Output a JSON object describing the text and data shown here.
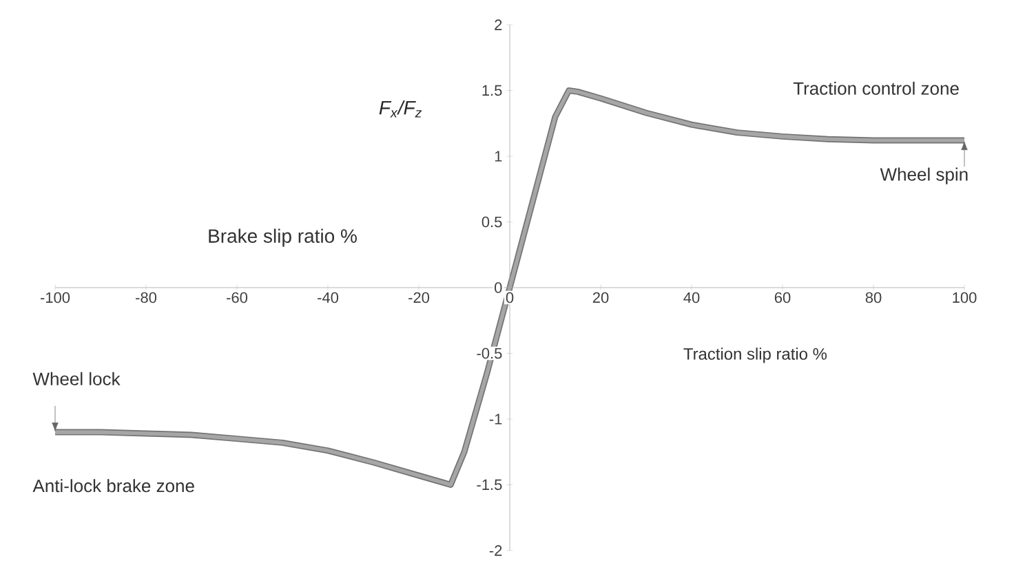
{
  "chart_data": {
    "type": "line",
    "ylabel": "F$_{x}$/F$_{z}$",
    "xlabel": "Traction slip ratio %",
    "xlim": [
      -100,
      100
    ],
    "ylim": [
      -2,
      2
    ],
    "xticks": [
      -100,
      -80,
      -60,
      -40,
      -20,
      0,
      20,
      40,
      60,
      80,
      100
    ],
    "yticks": [
      -2,
      -1.5,
      -1,
      -0.5,
      0,
      0.5,
      1,
      1.5,
      2
    ],
    "series": [
      {
        "color": "#a6a6a6",
        "x": [
          -100,
          -90,
          -80,
          -70,
          -60,
          -50,
          -40,
          -30,
          -20,
          -15,
          -13,
          -10,
          -5,
          0,
          5,
          10,
          13,
          15,
          20,
          30,
          40,
          50,
          60,
          70,
          80,
          90,
          100
        ],
        "values": [
          -1.1,
          -1.1,
          -1.11,
          -1.12,
          -1.15,
          -1.18,
          -1.24,
          -1.33,
          -1.43,
          -1.48,
          -1.5,
          -1.25,
          -0.65,
          0,
          0.65,
          1.3,
          1.5,
          1.49,
          1.44,
          1.33,
          1.24,
          1.18,
          1.15,
          1.13,
          1.12,
          1.12,
          1.12
        ]
      }
    ],
    "annotations": [
      "Traction control zone",
      {
        "text": "Wheel spin",
        "x": 100,
        "y": 1.12
      },
      {
        "text": "Wheel lock",
        "x": -100,
        "y": -1.1
      },
      "Anti-lock brake zone",
      "Brake slip ratio %"
    ]
  }
}
